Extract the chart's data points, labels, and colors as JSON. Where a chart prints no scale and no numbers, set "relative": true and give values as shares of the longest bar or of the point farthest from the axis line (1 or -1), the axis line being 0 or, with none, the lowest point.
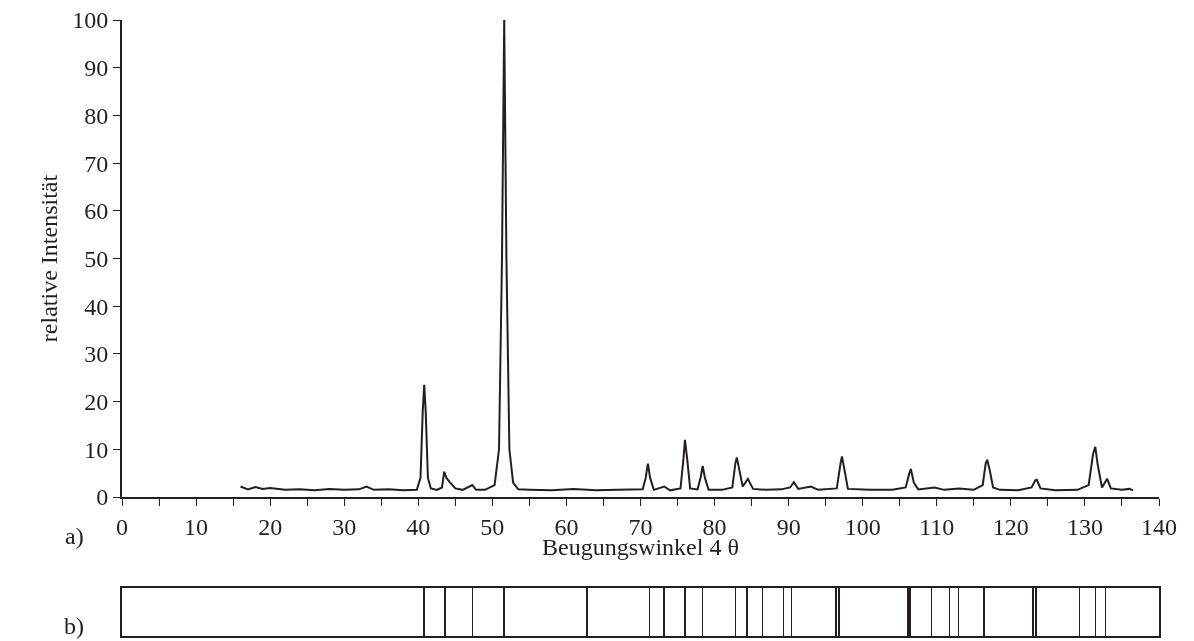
{
  "chart_data": [
    {
      "type": "line",
      "xlabel": "Beugungswinkel 4 θ",
      "ylabel": "relative Intensität",
      "annotations": [
        "a)"
      ],
      "color": "#231f20",
      "grid": false,
      "legend": false,
      "marker": "none",
      "line_style": "solid",
      "xlim": [
        0,
        140
      ],
      "ylim": [
        0,
        100
      ],
      "xticks": [
        0,
        {
          "value": 5,
          "label": null
        },
        10,
        {
          "value": 15,
          "label": null
        },
        20,
        {
          "value": 25,
          "label": null
        },
        30,
        {
          "value": 35,
          "label": null
        },
        40,
        {
          "value": 45,
          "label": null
        },
        50,
        {
          "value": 55,
          "label": null
        },
        60,
        {
          "value": 65,
          "label": null
        },
        70,
        {
          "value": 75,
          "label": null
        },
        80,
        {
          "value": 85,
          "label": null
        },
        90,
        {
          "value": 95,
          "label": null
        },
        100,
        {
          "value": 105,
          "label": null
        },
        110,
        {
          "value": 115,
          "label": null
        },
        120,
        {
          "value": 125,
          "label": null
        },
        130,
        {
          "value": 135,
          "label": null
        },
        140
      ],
      "yticks": [
        0,
        10,
        20,
        30,
        40,
        50,
        60,
        70,
        80,
        90,
        100
      ],
      "x": [
        16,
        17,
        18,
        19,
        20,
        22,
        24,
        26,
        28,
        30,
        32,
        33,
        34,
        36,
        38,
        39.8,
        40.3,
        40.6,
        40.8,
        41.0,
        41.3,
        41.7,
        42.5,
        43.2,
        43.5,
        43.8,
        44.3,
        45,
        46,
        47.3,
        47.8,
        49,
        50.3,
        50.9,
        51.3,
        51.6,
        51.9,
        52.3,
        52.8,
        53.5,
        55,
        58,
        61,
        64,
        67,
        70.3,
        70.7,
        71.0,
        71.3,
        71.8,
        73.2,
        74,
        75.4,
        75.8,
        76.0,
        76.3,
        76.7,
        77.7,
        78.1,
        78.4,
        78.7,
        79.2,
        81,
        82.4,
        82.8,
        83.0,
        83.3,
        83.8,
        84.5,
        85.2,
        87,
        89,
        90.2,
        90.7,
        91.3,
        93,
        94,
        96.5,
        97.0,
        97.2,
        97.5,
        98,
        101,
        104,
        105.8,
        106.3,
        106.5,
        106.9,
        107.5,
        109.7,
        111,
        113,
        115,
        116.2,
        116.6,
        116.8,
        117.1,
        117.6,
        118.5,
        121,
        122.8,
        123.3,
        123.5,
        124,
        126,
        129,
        130.5,
        131.1,
        131.4,
        131.7,
        132.3,
        133.0,
        133.5,
        135,
        136,
        136.5
      ],
      "values": [
        2.2,
        1.6,
        2.1,
        1.7,
        1.9,
        1.5,
        1.6,
        1.4,
        1.7,
        1.5,
        1.6,
        2.2,
        1.5,
        1.6,
        1.4,
        1.5,
        4,
        18,
        23.5,
        18,
        4,
        1.8,
        1.5,
        2,
        5.3,
        4,
        3,
        1.8,
        1.5,
        2.5,
        1.5,
        1.5,
        2.5,
        10,
        50,
        100,
        50,
        10,
        3,
        1.6,
        1.5,
        1.4,
        1.7,
        1.4,
        1.5,
        1.6,
        4,
        7,
        4,
        1.5,
        2.2,
        1.4,
        1.8,
        8,
        12,
        8,
        1.8,
        1.6,
        4,
        6.5,
        4,
        1.5,
        1.5,
        2,
        7,
        8.3,
        6,
        2.2,
        3.8,
        1.7,
        1.5,
        1.6,
        2,
        3.1,
        1.7,
        2.2,
        1.5,
        1.8,
        7,
        8.5,
        6,
        1.7,
        1.5,
        1.5,
        2,
        5,
        5.9,
        3,
        1.6,
        2,
        1.5,
        1.8,
        1.5,
        2.5,
        7,
        7.8,
        6,
        2,
        1.5,
        1.4,
        2,
        3.5,
        3.6,
        1.8,
        1.4,
        1.5,
        2.5,
        9,
        10.5,
        7,
        2,
        3.8,
        1.8,
        1.5,
        1.7,
        1.4
      ]
    },
    {
      "type": "bar",
      "relative": true,
      "annotations": [
        "b)"
      ],
      "color": "#231f20",
      "tick_labels": false,
      "xlim": [
        0,
        140
      ],
      "x": [
        40.8,
        43.6,
        47.3,
        51.6,
        62.8,
        71.2,
        73.2,
        76.0,
        78.4,
        82.8,
        84.4,
        86.5,
        89.3,
        90.4,
        96.4,
        96.8,
        106.1,
        106.4,
        109.3,
        111.7,
        112.9,
        116.4,
        123.0,
        123.4,
        129.3,
        131.4,
        132.8
      ],
      "values": [
        1,
        1,
        1,
        1,
        1,
        1,
        1,
        1,
        1,
        1,
        1,
        1,
        1,
        1,
        1,
        1,
        1,
        1,
        1,
        1,
        1,
        1,
        1,
        1,
        1,
        1,
        1
      ]
    }
  ]
}
